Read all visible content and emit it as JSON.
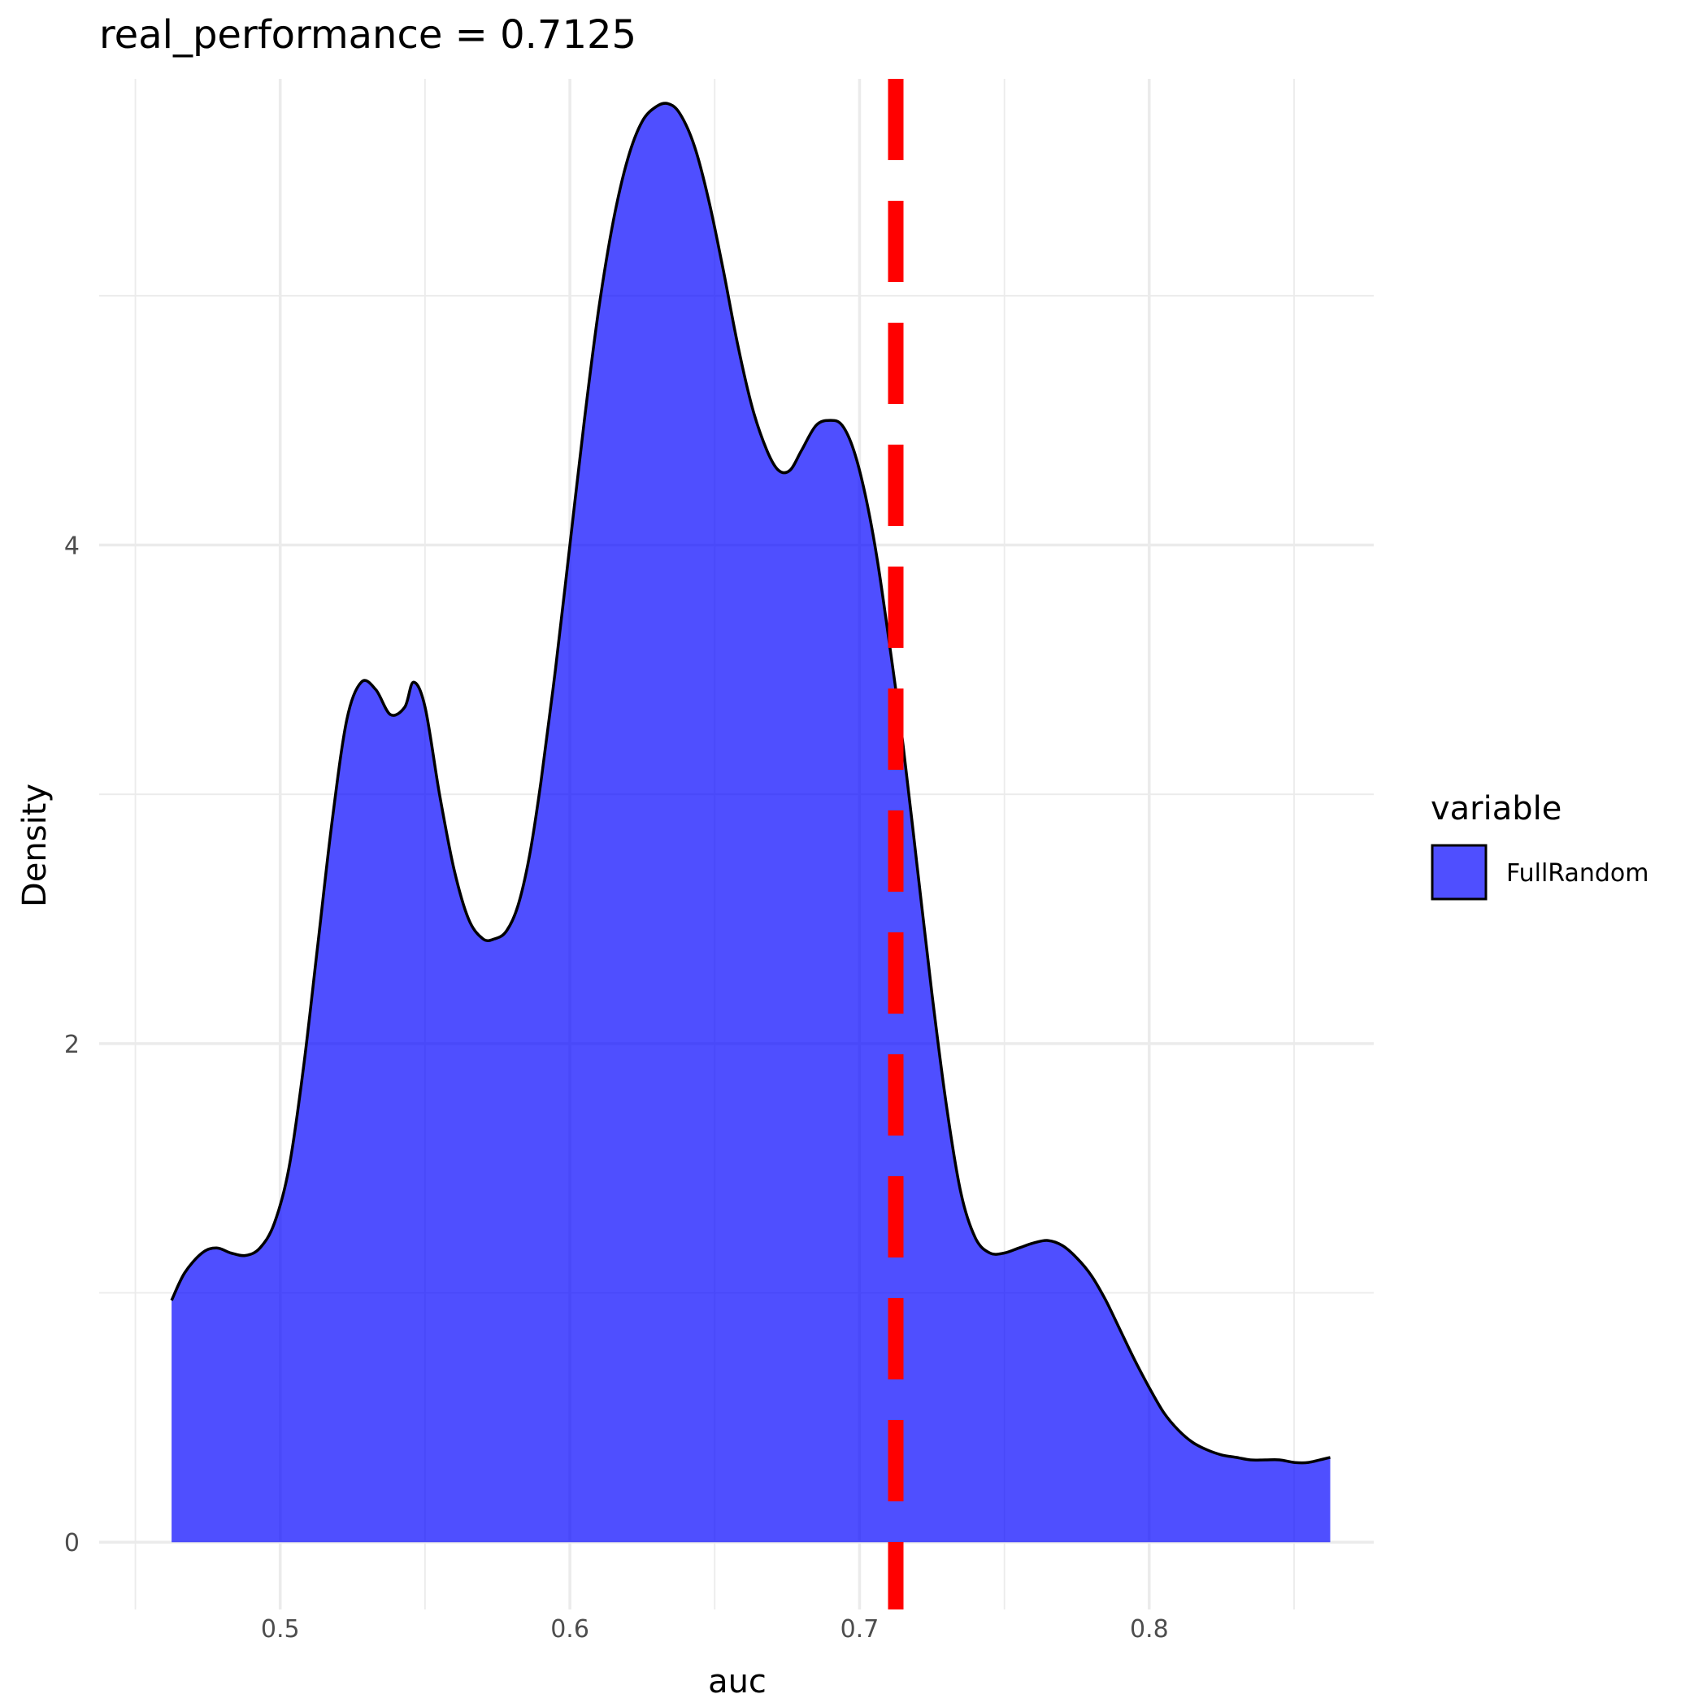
{
  "chart_data": {
    "type": "area",
    "title": "real_performance = 0.7125",
    "xlabel": "auc",
    "ylabel": "Density",
    "xlim": [
      0.4375,
      0.8775
    ],
    "ylim": [
      -0.27,
      5.87
    ],
    "x_ticks": [
      0.5,
      0.6,
      0.7,
      0.8
    ],
    "x_tick_labels": [
      "0.5",
      "0.6",
      "0.7",
      "0.8"
    ],
    "y_ticks": [
      0,
      2,
      4
    ],
    "y_tick_labels": [
      "0",
      "2",
      "4"
    ],
    "grid": true,
    "legend": {
      "title": "variable",
      "position": "right",
      "entries": [
        "FullRandom"
      ]
    },
    "colors": {
      "fill": "#0000ff",
      "fill_opacity": 0.69,
      "outline": "#000000",
      "reference_line": "#ff0000"
    },
    "reference_line": {
      "x": 0.7125,
      "style": "dashed"
    },
    "series": [
      {
        "name": "FullRandom",
        "x": [
          0.4625,
          0.467,
          0.473,
          0.478,
          0.483,
          0.488,
          0.493,
          0.498,
          0.503,
          0.508,
          0.513,
          0.518,
          0.523,
          0.528,
          0.533,
          0.538,
          0.543,
          0.546,
          0.55,
          0.555,
          0.56,
          0.565,
          0.57,
          0.574,
          0.578,
          0.582,
          0.586,
          0.59,
          0.595,
          0.6,
          0.605,
          0.61,
          0.615,
          0.62,
          0.625,
          0.63,
          0.634,
          0.638,
          0.643,
          0.648,
          0.653,
          0.658,
          0.663,
          0.668,
          0.672,
          0.676,
          0.68,
          0.685,
          0.69,
          0.694,
          0.698,
          0.702,
          0.706,
          0.71,
          0.715,
          0.72,
          0.725,
          0.73,
          0.735,
          0.74,
          0.745,
          0.75,
          0.755,
          0.76,
          0.765,
          0.77,
          0.775,
          0.78,
          0.785,
          0.79,
          0.795,
          0.8,
          0.805,
          0.81,
          0.815,
          0.82,
          0.825,
          0.83,
          0.835,
          0.84,
          0.845,
          0.85,
          0.855,
          0.8625
        ],
        "values": [
          0.97,
          1.08,
          1.16,
          1.18,
          1.16,
          1.15,
          1.18,
          1.28,
          1.5,
          1.9,
          2.4,
          2.9,
          3.3,
          3.45,
          3.42,
          3.32,
          3.35,
          3.45,
          3.35,
          3.0,
          2.7,
          2.5,
          2.42,
          2.42,
          2.45,
          2.55,
          2.75,
          3.05,
          3.5,
          4.0,
          4.5,
          4.95,
          5.3,
          5.55,
          5.7,
          5.76,
          5.77,
          5.73,
          5.6,
          5.38,
          5.1,
          4.8,
          4.55,
          4.38,
          4.3,
          4.3,
          4.38,
          4.48,
          4.5,
          4.48,
          4.38,
          4.2,
          3.95,
          3.63,
          3.2,
          2.7,
          2.2,
          1.75,
          1.4,
          1.22,
          1.16,
          1.16,
          1.18,
          1.2,
          1.21,
          1.19,
          1.14,
          1.07,
          0.97,
          0.85,
          0.73,
          0.62,
          0.52,
          0.45,
          0.4,
          0.37,
          0.35,
          0.34,
          0.33,
          0.33,
          0.33,
          0.32,
          0.32,
          0.34
        ]
      }
    ]
  }
}
